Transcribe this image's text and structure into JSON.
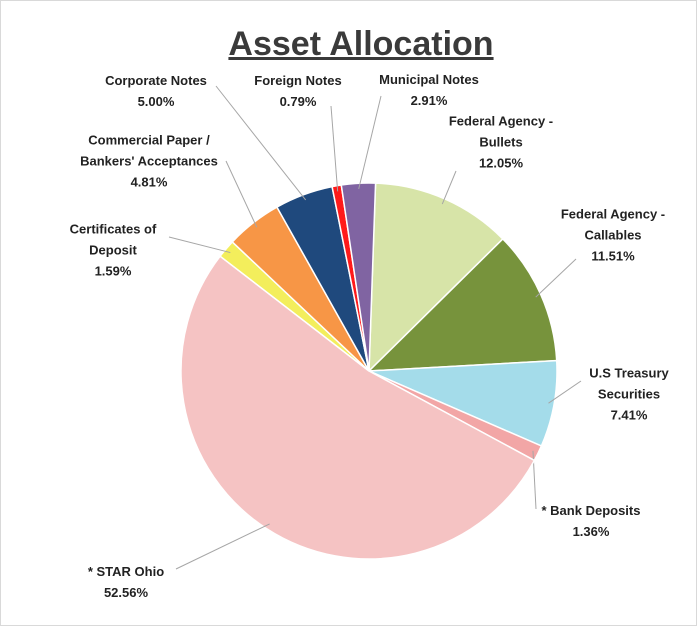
{
  "chart_data": {
    "type": "pie",
    "title": "Asset Allocation",
    "categories": [
      "Federal Agency - Bullets",
      "Federal Agency - Callables",
      "U.S Treasury Securities",
      "* Bank Deposits",
      "* STAR Ohio",
      "Certificates of Deposit",
      "Commercial Paper / Bankers' Acceptances",
      "Corporate Notes",
      "Foreign Notes",
      "Municipal Notes"
    ],
    "values": [
      12.05,
      11.51,
      7.41,
      1.36,
      52.56,
      1.59,
      4.81,
      5.0,
      0.79,
      2.91
    ],
    "value_labels": [
      "12.05%",
      "11.51%",
      "7.41%",
      "1.36%",
      "52.56%",
      "1.59%",
      "4.81%",
      "5.00%",
      "0.79%",
      "2.91%"
    ],
    "colors": [
      "#d7e4a8",
      "#77933c",
      "#a4dcea",
      "#f2a6a6",
      "#f5c3c3",
      "#f3ee5c",
      "#f79646",
      "#1f497d",
      "#ff1a1a",
      "#8064a2"
    ]
  }
}
